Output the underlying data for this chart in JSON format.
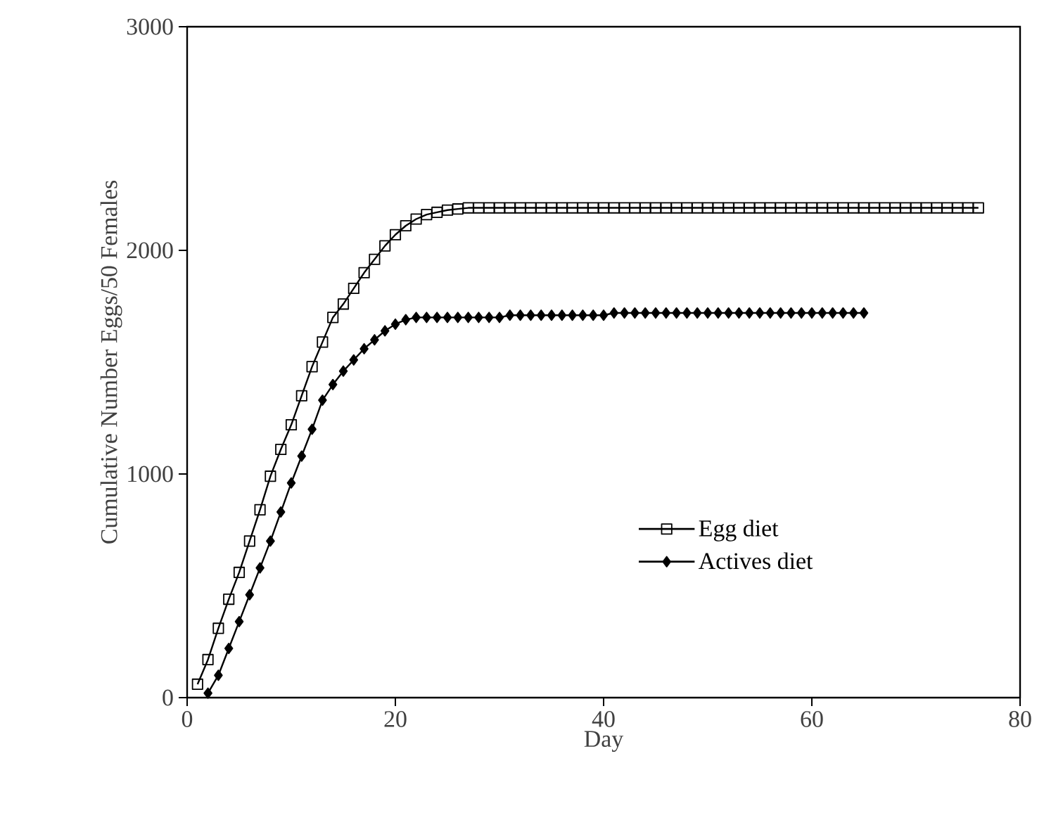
{
  "chart_data": {
    "type": "line",
    "xlabel": "Day",
    "ylabel": "Cumulative Number Eggs/50 Females",
    "xlim": [
      0,
      80
    ],
    "ylim": [
      0,
      3000
    ],
    "xticks": [
      0,
      20,
      40,
      60,
      80
    ],
    "yticks": [
      0,
      1000,
      2000,
      3000
    ],
    "grid": false,
    "legend": "right",
    "line_style": "solid",
    "series": [
      {
        "name": "Egg diet",
        "color": "#000000",
        "marker": "square",
        "x": [
          1,
          2,
          3,
          4,
          5,
          6,
          7,
          8,
          9,
          10,
          11,
          12,
          13,
          14,
          15,
          16,
          17,
          18,
          19,
          20,
          21,
          22,
          23,
          24,
          25,
          26,
          27,
          28,
          29,
          30,
          31,
          32,
          33,
          34,
          35,
          36,
          37,
          38,
          39,
          40,
          41,
          42,
          43,
          44,
          45,
          46,
          47,
          48,
          49,
          50,
          51,
          52,
          53,
          54,
          55,
          56,
          57,
          58,
          59,
          60,
          61,
          62,
          63,
          64,
          65,
          66,
          67,
          68,
          69,
          70,
          71,
          72,
          73,
          74,
          75,
          76
        ],
        "values": [
          60,
          170,
          310,
          440,
          560,
          700,
          840,
          990,
          1110,
          1220,
          1350,
          1480,
          1590,
          1700,
          1760,
          1830,
          1900,
          1960,
          2020,
          2070,
          2110,
          2140,
          2160,
          2170,
          2180,
          2185,
          2190,
          2190,
          2190,
          2190,
          2190,
          2190,
          2190,
          2190,
          2190,
          2190,
          2190,
          2190,
          2190,
          2190,
          2190,
          2190,
          2190,
          2190,
          2190,
          2190,
          2190,
          2190,
          2190,
          2190,
          2190,
          2190,
          2190,
          2190,
          2190,
          2190,
          2190,
          2190,
          2190,
          2190,
          2190,
          2190,
          2190,
          2190,
          2190,
          2190,
          2190,
          2190,
          2190,
          2190,
          2190,
          2190,
          2190,
          2190,
          2190,
          2190
        ]
      },
      {
        "name": "Actives diet",
        "color": "#000000",
        "marker": "diamond",
        "x": [
          2,
          3,
          4,
          5,
          6,
          7,
          8,
          9,
          10,
          11,
          12,
          13,
          14,
          15,
          16,
          17,
          18,
          19,
          20,
          21,
          22,
          23,
          24,
          25,
          26,
          27,
          28,
          29,
          30,
          31,
          32,
          33,
          34,
          35,
          36,
          37,
          38,
          39,
          40,
          41,
          42,
          43,
          44,
          45,
          46,
          47,
          48,
          49,
          50,
          51,
          52,
          53,
          54,
          55,
          56,
          57,
          58,
          59,
          60,
          61,
          62,
          63,
          64,
          65
        ],
        "values": [
          20,
          100,
          220,
          340,
          460,
          580,
          700,
          830,
          960,
          1080,
          1200,
          1330,
          1400,
          1460,
          1510,
          1560,
          1600,
          1640,
          1670,
          1690,
          1700,
          1700,
          1700,
          1700,
          1700,
          1700,
          1700,
          1700,
          1700,
          1710,
          1710,
          1710,
          1710,
          1710,
          1710,
          1710,
          1710,
          1710,
          1710,
          1720,
          1720,
          1720,
          1720,
          1720,
          1720,
          1720,
          1720,
          1720,
          1720,
          1720,
          1720,
          1720,
          1720,
          1720,
          1720,
          1720,
          1720,
          1720,
          1720,
          1720,
          1720,
          1720,
          1720,
          1720
        ]
      }
    ]
  }
}
